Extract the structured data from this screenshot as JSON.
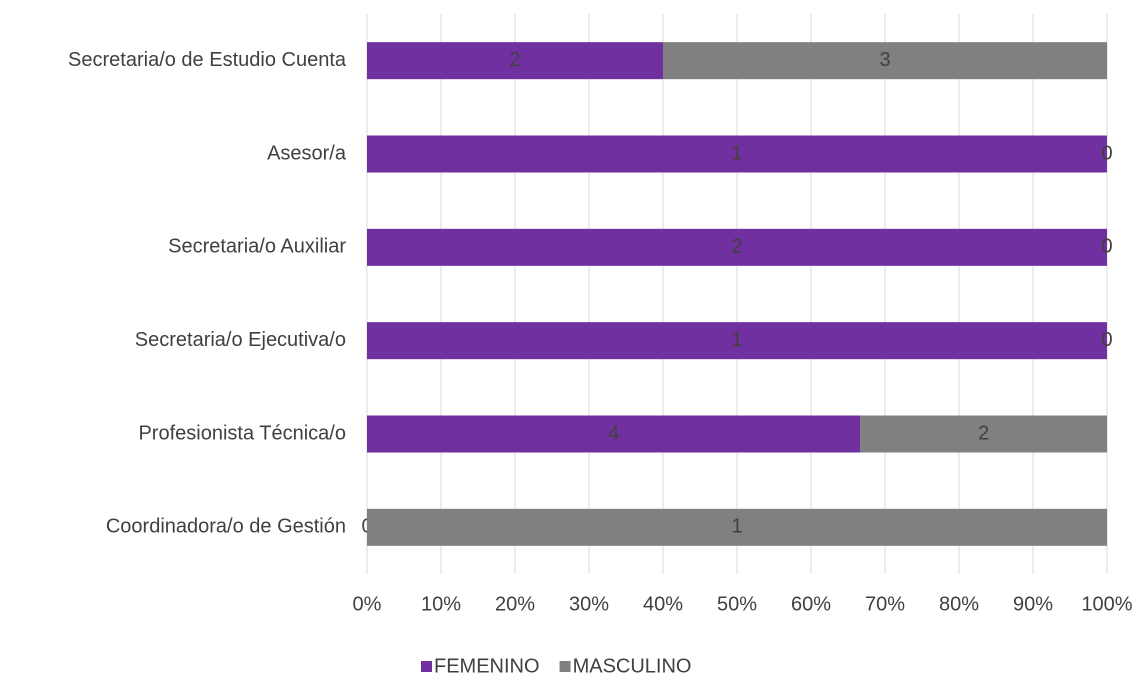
{
  "chart_data": {
    "type": "bar",
    "orientation": "horizontal",
    "stacked": "percent",
    "categories": [
      "Secretaria/o de Estudio Cuenta",
      "Asesor/a",
      "Secretaria/o Auxiliar",
      "Secretaria/o Ejecutiva/o",
      "Profesionista Técnica/o",
      "Coordinadora/o de Gestión"
    ],
    "series": [
      {
        "name": "FEMENINO",
        "color": "#7030a0",
        "values": [
          2,
          1,
          2,
          1,
          4,
          0
        ]
      },
      {
        "name": "MASCULINO",
        "color": "#808080",
        "values": [
          3,
          0,
          0,
          0,
          2,
          1
        ]
      }
    ],
    "xlim": [
      0,
      100
    ],
    "xticks": [
      {
        "value": 0,
        "label": "0%"
      },
      {
        "value": 10,
        "label": "10%"
      },
      {
        "value": 20,
        "label": "20%"
      },
      {
        "value": 30,
        "label": "30%"
      },
      {
        "value": 40,
        "label": "40%"
      },
      {
        "value": 50,
        "label": "50%"
      },
      {
        "value": 60,
        "label": "60%"
      },
      {
        "value": 70,
        "label": "70%"
      },
      {
        "value": 80,
        "label": "80%"
      },
      {
        "value": 90,
        "label": "90%"
      },
      {
        "value": 100,
        "label": "100%"
      }
    ],
    "grid": true,
    "legend": "bottom"
  }
}
